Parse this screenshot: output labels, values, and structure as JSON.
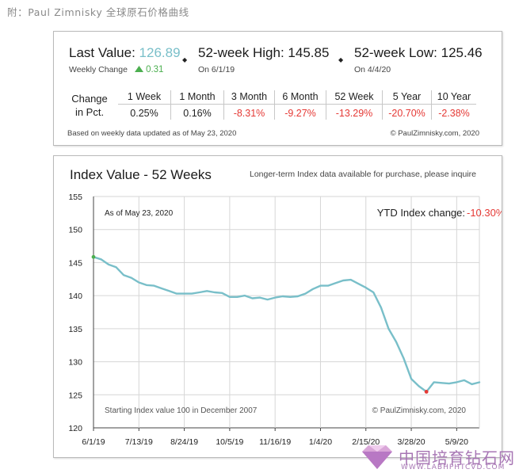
{
  "caption": "附：Paul Zimnisky 全球原石价格曲线",
  "summary": {
    "last_value_label": "Last Value:",
    "last_value": "126.89",
    "weekly_change_label": "Weekly Change",
    "weekly_change": "0.31",
    "high_label": "52-week High:",
    "high_value": "145.85",
    "high_date": "On 6/1/19",
    "low_label": "52-week Low:",
    "low_value": "125.46",
    "low_date": "On 4/4/20",
    "change_label_line1": "Change",
    "change_label_line2": "in Pct.",
    "periods": [
      "1 Week",
      "1 Month",
      "3 Month",
      "6 Month",
      "52 Week",
      "5 Year",
      "10 Year"
    ],
    "changes": [
      "0.25%",
      "0.16%",
      "-8.31%",
      "-9.27%",
      "-13.29%",
      "-20.70%",
      "-2.38%"
    ],
    "footer_left": "Based on weekly data updated as of May 23, 2020",
    "footer_right": "© PaulZimnisky.com, 2020",
    "colors": {
      "accent": "#79bfc9",
      "up": "#4caf50",
      "down": "#e53935"
    }
  },
  "chart_panel": {
    "title": "Index Value - 52 Weeks",
    "note": "Longer-term Index data available for purchase, please inquire",
    "as_of": "As of May 23, 2020",
    "ytd_label": "YTD Index change:",
    "ytd_value": "-10.30%",
    "starting_note": "Starting Index value 100 in December 2007",
    "copyright": "© PaulZimnisky.com, 2020"
  },
  "chart_data": {
    "type": "line",
    "title": "Index Value - 52 Weeks",
    "xlabel": "",
    "ylabel": "",
    "ylim": [
      120,
      155
    ],
    "y_ticks": [
      120,
      125,
      130,
      135,
      140,
      145,
      150,
      155
    ],
    "x_tick_labels": [
      "6/1/19",
      "7/13/19",
      "8/24/19",
      "10/5/19",
      "11/16/19",
      "1/4/20",
      "2/15/20",
      "3/28/20",
      "5/9/20"
    ],
    "grid": true,
    "line_color": "#79bfc9",
    "start_marker_color": "#4caf50",
    "low_marker_color": "#e53935",
    "values": [
      145.85,
      145.5,
      144.7,
      144.3,
      143.1,
      142.7,
      142.0,
      141.6,
      141.5,
      141.1,
      140.7,
      140.3,
      140.3,
      140.3,
      140.5,
      140.7,
      140.5,
      140.4,
      139.8,
      139.8,
      140.0,
      139.6,
      139.7,
      139.4,
      139.7,
      139.9,
      139.8,
      139.9,
      140.3,
      141.0,
      141.5,
      141.5,
      141.9,
      142.3,
      142.4,
      141.8,
      141.2,
      140.5,
      138.2,
      135.0,
      133.0,
      130.5,
      127.4,
      126.3,
      125.46,
      126.9,
      126.8,
      126.7,
      126.9,
      127.2,
      126.6,
      126.89
    ]
  }
}
